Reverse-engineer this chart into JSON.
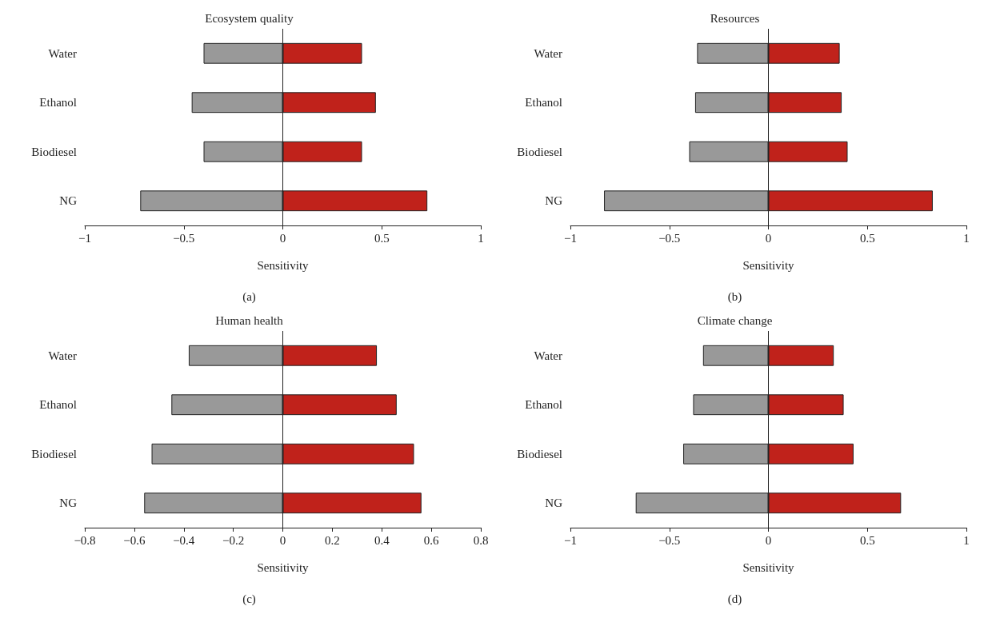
{
  "chart_data": [
    {
      "type": "bar",
      "orientation": "horizontal",
      "stacked": true,
      "title": "Ecosystem quality",
      "xlabel": "Sensitivity",
      "annotations": [
        "(a)"
      ],
      "categories": [
        "Water",
        "Ethanol",
        "Biodiesel",
        "NG"
      ],
      "series": [
        {
          "color": "#999999",
          "values": [
            -0.4,
            -0.46,
            -0.4,
            -0.72
          ]
        },
        {
          "color": "#c0221b",
          "values": [
            0.4,
            0.47,
            0.4,
            0.73
          ]
        }
      ],
      "xlim": [
        -1,
        1
      ],
      "xticks": [
        {
          "value": -1,
          "label": "−1"
        },
        {
          "value": -0.5,
          "label": "−0.5"
        },
        0,
        0.5,
        1
      ],
      "ref_lines": [
        {
          "axis": "x",
          "value": 0,
          "color": "#222222",
          "line_style": "solid"
        }
      ]
    },
    {
      "type": "bar",
      "orientation": "horizontal",
      "stacked": true,
      "title": "Resources",
      "xlabel": "Sensitivity",
      "annotations": [
        "(b)"
      ],
      "categories": [
        "Water",
        "Ethanol",
        "Biodiesel",
        "NG"
      ],
      "series": [
        {
          "color": "#999999",
          "values": [
            -0.36,
            -0.37,
            -0.4,
            -0.83
          ]
        },
        {
          "color": "#c0221b",
          "values": [
            0.36,
            0.37,
            0.4,
            0.83
          ]
        }
      ],
      "xlim": [
        -1,
        1
      ],
      "xticks": [
        {
          "value": -1,
          "label": "−1"
        },
        {
          "value": -0.5,
          "label": "−0.5"
        },
        0,
        0.5,
        1
      ],
      "ref_lines": [
        {
          "axis": "x",
          "value": 0,
          "color": "#222222",
          "line_style": "solid"
        }
      ]
    },
    {
      "type": "bar",
      "orientation": "horizontal",
      "stacked": true,
      "title": "Human health",
      "xlabel": "Sensitivity",
      "annotations": [
        "(c)"
      ],
      "categories": [
        "Water",
        "Ethanol",
        "Biodiesel",
        "NG"
      ],
      "series": [
        {
          "color": "#999999",
          "values": [
            -0.38,
            -0.45,
            -0.53,
            -0.56
          ]
        },
        {
          "color": "#c0221b",
          "values": [
            0.38,
            0.46,
            0.53,
            0.56
          ]
        }
      ],
      "xlim": [
        -0.8,
        0.8
      ],
      "xticks": [
        {
          "value": -0.8,
          "label": "−0.8"
        },
        {
          "value": -0.6,
          "label": "−0.6"
        },
        {
          "value": -0.4,
          "label": "−0.4"
        },
        {
          "value": -0.2,
          "label": "−0.2"
        },
        0,
        0.2,
        0.4,
        0.6,
        0.8
      ],
      "ref_lines": [
        {
          "axis": "x",
          "value": 0,
          "color": "#222222",
          "line_style": "solid"
        }
      ]
    },
    {
      "type": "bar",
      "orientation": "horizontal",
      "stacked": true,
      "title": "Climate change",
      "xlabel": "Sensitivity",
      "annotations": [
        "(d)"
      ],
      "categories": [
        "Water",
        "Ethanol",
        "Biodiesel",
        "NG"
      ],
      "series": [
        {
          "color": "#999999",
          "values": [
            -0.33,
            -0.38,
            -0.43,
            -0.67
          ]
        },
        {
          "color": "#c0221b",
          "values": [
            0.33,
            0.38,
            0.43,
            0.67
          ]
        }
      ],
      "xlim": [
        -1,
        1
      ],
      "xticks": [
        {
          "value": -1,
          "label": "−1"
        },
        {
          "value": -0.5,
          "label": "−0.5"
        },
        0,
        0.5,
        1
      ],
      "ref_lines": [
        {
          "axis": "x",
          "value": 0,
          "color": "#222222",
          "line_style": "solid"
        }
      ]
    }
  ]
}
